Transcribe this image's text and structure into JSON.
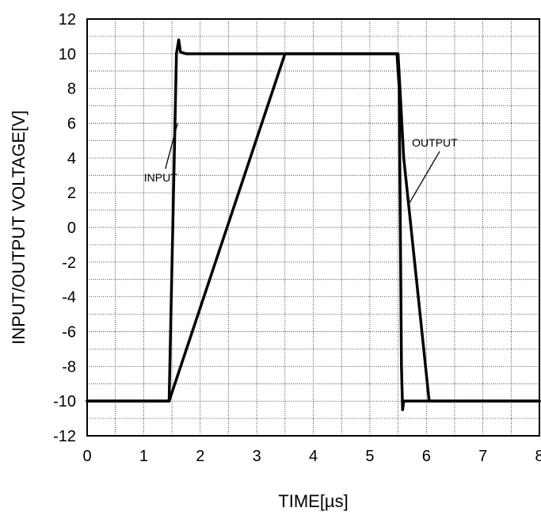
{
  "chart_data": {
    "type": "line",
    "xlabel": "TIME[µs]",
    "ylabel": "INPUT/OUTPUT VOLTAGE[V]",
    "xlim": [
      0,
      8
    ],
    "ylim": [
      -12,
      12
    ],
    "xticks": [
      "0",
      "1",
      "2",
      "3",
      "4",
      "5",
      "6",
      "7",
      "8"
    ],
    "yticks": [
      "12",
      "10",
      "8",
      "6",
      "4",
      "2",
      "0",
      "-2",
      "-4",
      "-6",
      "-8",
      "-10",
      "-12"
    ],
    "grid": true,
    "series": [
      {
        "name": "INPUT",
        "x": [
          0,
          1.45,
          1.58,
          1.62,
          1.65,
          1.75,
          1.85,
          5.48,
          5.52,
          5.56,
          5.58,
          5.6,
          5.66,
          8
        ],
        "y": [
          -10,
          -10,
          10,
          10.8,
          10.1,
          10,
          10,
          10,
          8,
          -8,
          -10.5,
          -10,
          -10,
          -10
        ]
      },
      {
        "name": "OUTPUT",
        "x": [
          0,
          1.45,
          3.5,
          5.5,
          5.6,
          6.05,
          8
        ],
        "y": [
          -10,
          -10,
          10,
          10,
          4,
          -10,
          -10
        ]
      }
    ],
    "annotations": [
      {
        "text": "INPUT",
        "x": 1.3,
        "y": 3.1,
        "arrow_to": [
          1.6,
          6
        ]
      },
      {
        "text": "OUTPUT",
        "x": 6.15,
        "y": 5.1,
        "arrow_to": [
          5.7,
          1.4
        ]
      }
    ]
  }
}
